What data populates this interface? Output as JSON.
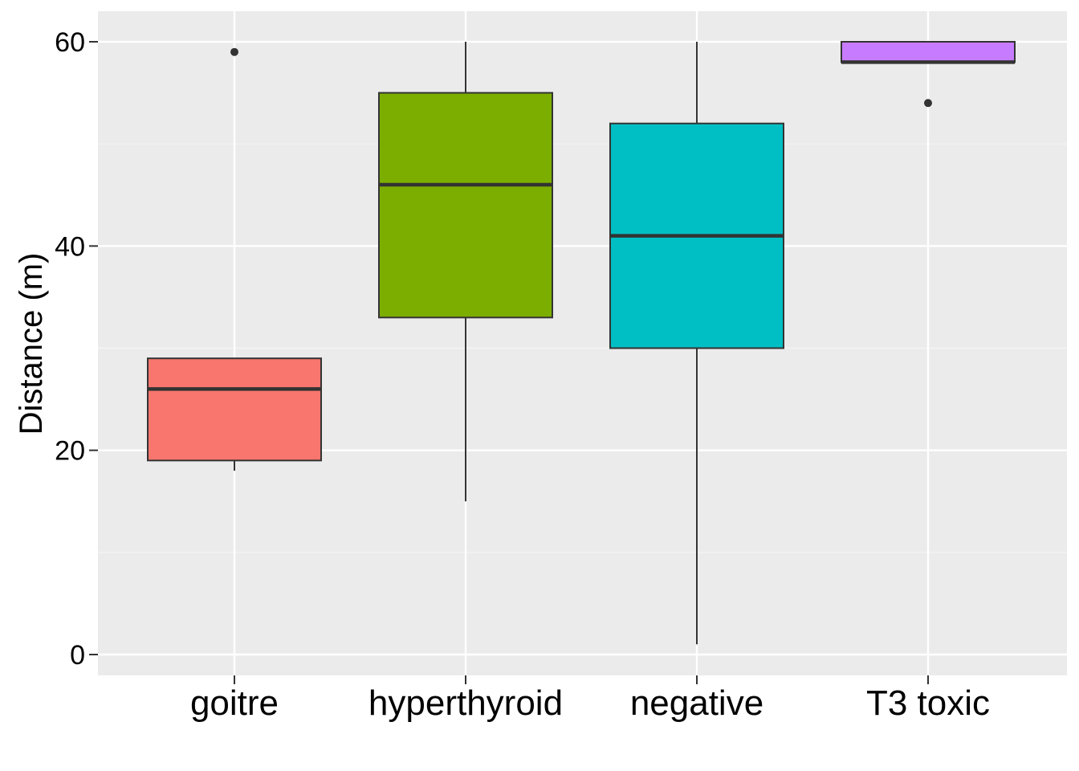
{
  "chart_data": {
    "type": "boxplot",
    "title": "",
    "xlabel": "",
    "ylabel": "Distance (m)",
    "ylim": [
      -2,
      63
    ],
    "y_ticks": [
      0,
      20,
      40,
      60
    ],
    "y_tick_labels": [
      "0",
      "20",
      "40",
      "60"
    ],
    "grid": true,
    "legend": "none",
    "colors": {
      "panel_background": "#EBEBEB",
      "grid_major": "#FFFFFF",
      "grid_minor": "#F5F5F5",
      "box_outline": "#333333"
    },
    "categories": [
      "goitre",
      "hyperthyroid",
      "negative",
      "T3 toxic"
    ],
    "boxes": [
      {
        "category": "goitre",
        "whisker_low": 18,
        "q1": 19,
        "median": 26,
        "q3": 29,
        "whisker_high": 29,
        "outliers": [
          59
        ],
        "fill": "#F8766D"
      },
      {
        "category": "hyperthyroid",
        "whisker_low": 15,
        "q1": 33,
        "median": 46,
        "q3": 55,
        "whisker_high": 60,
        "outliers": [],
        "fill": "#7CAE00"
      },
      {
        "category": "negative",
        "whisker_low": 1,
        "q1": 30,
        "median": 41,
        "q3": 52,
        "whisker_high": 60,
        "outliers": [],
        "fill": "#00BFC4"
      },
      {
        "category": "T3 toxic",
        "whisker_low": 58,
        "q1": 58,
        "median": 58,
        "q3": 60,
        "whisker_high": 60,
        "outliers": [
          54
        ],
        "fill": "#C77CFF"
      }
    ]
  }
}
